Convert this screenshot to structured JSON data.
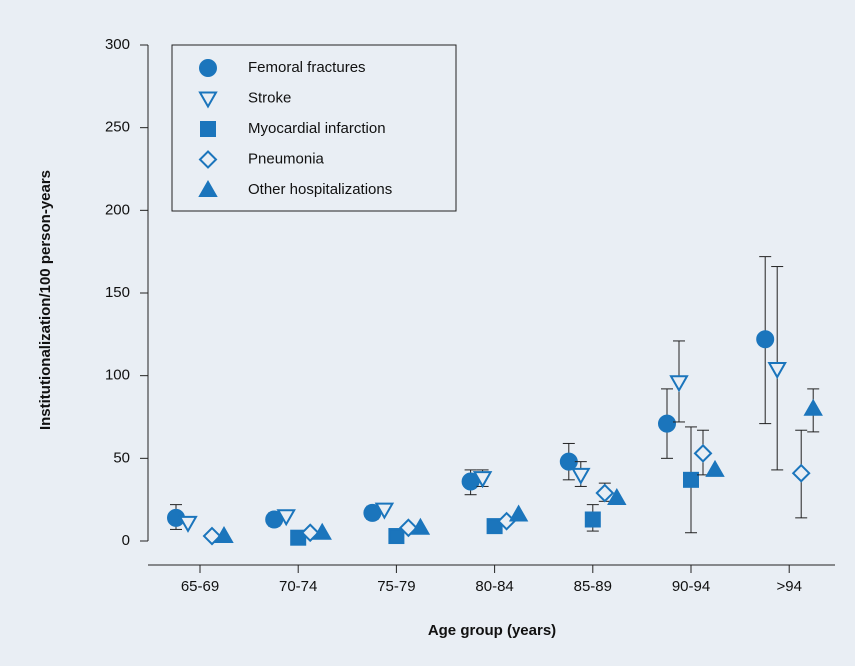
{
  "chart_data": {
    "type": "scatter",
    "y_label": "Institutionalization/100 person-years",
    "x_label": "Age group (years)",
    "categories": [
      "65-69",
      "70-74",
      "75-79",
      "80-84",
      "85-89",
      "90-94",
      ">94"
    ],
    "ylim": [
      0,
      300
    ],
    "yticks": [
      0,
      50,
      100,
      150,
      200,
      250,
      300
    ],
    "legend": "top-left",
    "series": [
      {
        "name": "Femoral fractures",
        "color": "#1b75bc",
        "marker": "circle",
        "values": [
          14,
          13,
          17,
          36,
          48,
          71,
          122
        ],
        "ci": [
          [
            7,
            22
          ],
          [
            9,
            17
          ],
          [
            13,
            21
          ],
          [
            28,
            43
          ],
          [
            37,
            59
          ],
          [
            50,
            92
          ],
          [
            71,
            172
          ]
        ]
      },
      {
        "name": "Stroke",
        "color": "#1b75bc",
        "marker": "triangle-down-open",
        "values": [
          11,
          15,
          19,
          38,
          40,
          96,
          104
        ],
        "ci": [
          null,
          null,
          null,
          [
            33,
            43
          ],
          [
            33,
            48
          ],
          [
            72,
            121
          ],
          [
            43,
            166
          ]
        ]
      },
      {
        "name": "Myocardial infarction",
        "color": "#1b75bc",
        "marker": "square",
        "values": [
          null,
          2,
          3,
          9,
          13,
          37,
          null
        ],
        "ci": [
          null,
          null,
          null,
          null,
          [
            6,
            22
          ],
          [
            5,
            69
          ],
          null
        ]
      },
      {
        "name": "Pneumonia",
        "color": "#1b75bc",
        "marker": "diamond-open",
        "values": [
          3,
          5,
          8,
          12,
          29,
          53,
          41
        ],
        "ci": [
          null,
          null,
          null,
          null,
          [
            24,
            35
          ],
          [
            40,
            67
          ],
          [
            14,
            67
          ]
        ]
      },
      {
        "name": "Other hospitalizations",
        "color": "#1b75bc",
        "marker": "triangle",
        "values": [
          3,
          5,
          8,
          16,
          26,
          43,
          80
        ],
        "ci": [
          null,
          null,
          null,
          null,
          null,
          null,
          [
            66,
            92
          ]
        ]
      }
    ]
  }
}
